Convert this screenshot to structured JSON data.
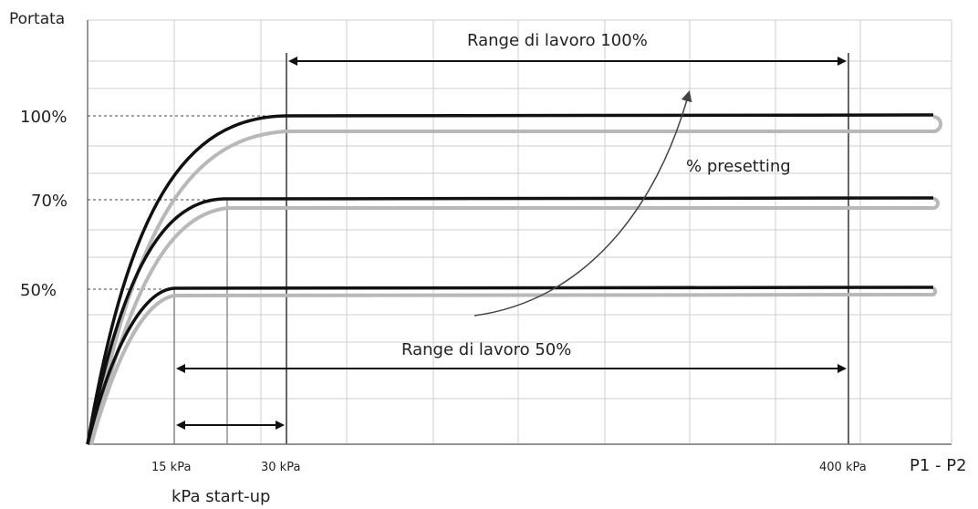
{
  "chart_data": {
    "type": "line",
    "ylabel": "Portata",
    "xlabel": "P1 - P2",
    "x_ticks": [
      "15 kPa",
      "30 kPa",
      "400 kPa"
    ],
    "y_ticks": [
      "100%",
      "70%",
      "50%"
    ],
    "series": [
      {
        "label": "100%",
        "plateau": 100,
        "startup_kpa": 30
      },
      {
        "label": "70%",
        "plateau": 70,
        "startup_kpa": 22
      },
      {
        "label": "50%",
        "plateau": 50,
        "startup_kpa": 15
      }
    ],
    "annotations": {
      "range_100": "Range di lavoro 100%",
      "range_50": "Range di lavoro 50%",
      "presetting": "% presetting",
      "startup": "kPa start-up"
    },
    "grid": true
  }
}
